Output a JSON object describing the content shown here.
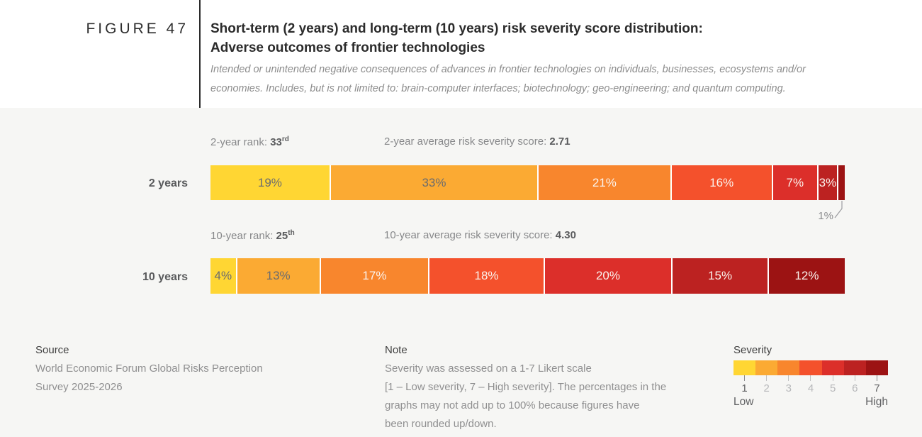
{
  "figure_label": "FIGURE 47",
  "header": {
    "title_lines": [
      "Short-term (2 years) and long-term (10 years) risk severity score distribution:",
      "Adverse outcomes of frontier technologies"
    ],
    "subtitle_lines": [
      "Intended or unintended negative consequences of advances in frontier technologies on individuals, businesses, ecosystems and/or",
      "economies. Includes, but is not limited to: brain-computer interfaces; biotechnology; geo-engineering; and quantum computing."
    ]
  },
  "chart_data": {
    "type": "bar",
    "subtype": "stacked-horizontal-percentage",
    "title": "Short-term (2 years) and long-term (10 years) risk severity score distribution: Adverse outcomes of frontier technologies",
    "severity_scale": [
      "1",
      "2",
      "3",
      "4",
      "5",
      "6",
      "7"
    ],
    "severity_colors": [
      "#ffd633",
      "#fbaa33",
      "#f8862d",
      "#f4512c",
      "#dc2f2a",
      "#bc2221",
      "#9c1313"
    ],
    "legend_position": "bottom-right",
    "series": [
      {
        "name": "2 years",
        "rank": {
          "label": "2-year rank:",
          "value": "33",
          "ordinal": "rd"
        },
        "score": {
          "label": "2-year average risk severity score:",
          "value": "2.71"
        },
        "values": [
          19,
          33,
          21,
          16,
          7,
          3,
          1
        ],
        "labels": [
          "19%",
          "33%",
          "21%",
          "16%",
          "7%",
          "3%",
          "1%"
        ],
        "callout_label": "1%"
      },
      {
        "name": "10 years",
        "rank": {
          "label": "10-year rank:",
          "value": "25",
          "ordinal": "th"
        },
        "score": {
          "label": "10-year average risk severity score:",
          "value": "4.30"
        },
        "values": [
          4,
          13,
          17,
          18,
          20,
          15,
          12
        ],
        "labels": [
          "4%",
          "13%",
          "17%",
          "18%",
          "20%",
          "15%",
          "12%"
        ]
      }
    ]
  },
  "footer": {
    "source": {
      "heading": "Source",
      "lines": [
        "World Economic Forum Global Risks Perception",
        "Survey 2025-2026"
      ]
    },
    "note": {
      "heading": "Note",
      "lines": [
        "Severity was assessed on a 1-7 Likert scale",
        "[1 – Low severity, 7 – High severity]. The percentages in the",
        "graphs may not add up to 100% because figures have",
        "been rounded up/down."
      ]
    },
    "legend": {
      "heading": "Severity",
      "numbers": [
        "1",
        "2",
        "3",
        "4",
        "5",
        "6",
        "7"
      ],
      "low_label": "Low",
      "high_label": "High"
    }
  },
  "colors": {
    "page_bg": "#f6f6f4",
    "header_bg": "#ffffff",
    "divider": "#2b2b2b",
    "severity_low": "#ffd633",
    "severity_high": "#9c1313"
  }
}
